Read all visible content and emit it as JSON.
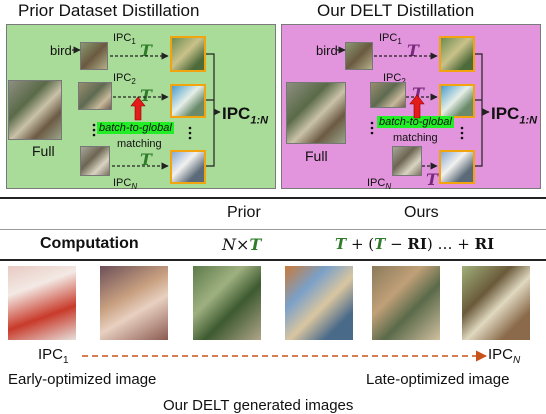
{
  "panels": {
    "prior": {
      "title": "Prior Dataset Distillation",
      "class_label": "bird",
      "ipc1": "IPC",
      "ipc1_sub": "1",
      "ipc2": "IPC",
      "ipc2_sub": "2",
      "ipcn": "IPC",
      "ipcn_sub": "N",
      "t_symbol": "T",
      "full_label": "Full",
      "btg": "batch-to-global",
      "matching": "matching",
      "ipc_out": "IPC",
      "ipc_out_sub": "1:N"
    },
    "delt": {
      "title": "Our DELT Distillation",
      "class_label": "bird",
      "ipc1": "IPC",
      "ipc1_sub": "1",
      "ipc2": "IPC",
      "ipc2_sub": "2",
      "ipcn": "IPC",
      "ipcn_sub": "N",
      "t_symbol": "T",
      "full_label": "Full",
      "btg": "batch-to-global",
      "matching": "matching",
      "ipc_out": "IPC",
      "ipc_out_sub": "1:N"
    }
  },
  "table": {
    "col_prior": "Prior",
    "col_ours": "Ours",
    "row_label": "Computation",
    "prior_value": {
      "n": "N",
      "times": "×",
      "t": "T"
    },
    "ours_value": {
      "t1": "T",
      "plus1": " + (",
      "t2": "T",
      "minus": " − ",
      "ri1": "RI",
      "close": ") … + ",
      "ri2": "RI"
    }
  },
  "bottom": {
    "left_ipc": "IPC",
    "left_sub": "1",
    "right_ipc": "IPC",
    "right_sub": "N",
    "early_caption": "Early-optimized image",
    "late_caption": "Late-optimized image",
    "footer": "Our DELT generated images"
  },
  "colors": {
    "prior_bg": "#a9dc99",
    "delt_bg": "#e295dd",
    "highlight": "#21ee25",
    "orange_frame": "#f2a40e",
    "arrow_red": "#e51b1b",
    "green_t": "#2f7d2a",
    "purple_t": "#7a2a7e",
    "dashed_arrow": "#c8531a"
  }
}
